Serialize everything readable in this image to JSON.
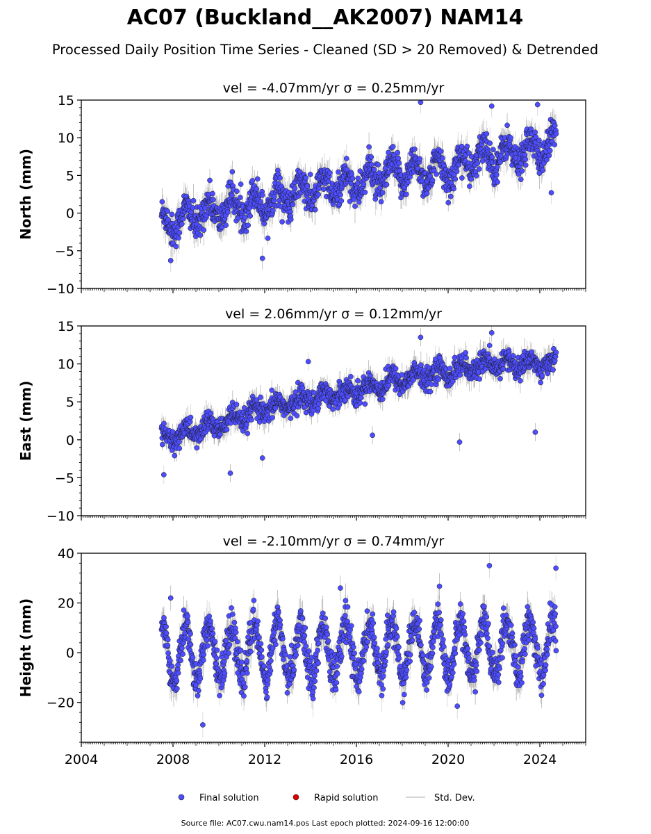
{
  "title": "AC07 (Buckland__AK2007) NAM14",
  "subtitle": "Processed Daily Position Time Series - Cleaned (SD > 20 Removed) & Detrended",
  "footer": "Source file: AC07.cwu.nam14.pos  Last epoch plotted: 2024-09-16 12:00:00",
  "colors": {
    "final": "#4d4dff",
    "rapid": "#e00000",
    "stddev": "#c8c8c8",
    "edge": "#1a1a1a"
  },
  "legend": [
    {
      "label": "Final solution",
      "marker": "circle",
      "color": "#4d4dff"
    },
    {
      "label": "Rapid solution",
      "marker": "circle",
      "color": "#e00000"
    },
    {
      "label": "Std. Dev.",
      "marker": "line",
      "color": "#c8c8c8"
    }
  ],
  "chart_data": [
    {
      "type": "scatter",
      "panel_title": "vel = -4.07mm/yr   σ = 0.25mm/yr",
      "ylabel": "North (mm)",
      "xlim": [
        2004,
        2026
      ],
      "ylim": [
        -10,
        15
      ],
      "yticks": [
        -10,
        -5,
        0,
        5,
        10,
        15
      ],
      "xticks": [
        2004,
        2008,
        2012,
        2016,
        2020,
        2024
      ],
      "show_xticklabels": false,
      "series": [
        {
          "name": "Final solution",
          "x_start": 2007.5,
          "x_end": 2024.71,
          "trend": [
            [
              2007.5,
              -1.5
            ],
            [
              2010,
              0.5
            ],
            [
              2012,
              1.5
            ],
            [
              2014,
              3
            ],
            [
              2016,
              4
            ],
            [
              2018,
              5.5
            ],
            [
              2020,
              5.5
            ],
            [
              2021.5,
              7.5
            ],
            [
              2023,
              8
            ],
            [
              2024.71,
              9
            ]
          ],
          "seasonal_amplitude": 1.5,
          "spread": 1.8,
          "sigma": 1.5,
          "outliers": [
            [
              2018.8,
              14.7
            ],
            [
              2021.9,
              14.2
            ],
            [
              2023.9,
              14.4
            ],
            [
              2011.9,
              -6
            ],
            [
              2007.9,
              -6.3
            ],
            [
              2024.5,
              2.7
            ]
          ]
        }
      ]
    },
    {
      "type": "scatter",
      "panel_title": "vel = 2.06mm/yr   σ = 0.12mm/yr",
      "ylabel": "East (mm)",
      "xlim": [
        2004,
        2026
      ],
      "ylim": [
        -10,
        15
      ],
      "yticks": [
        -10,
        -5,
        0,
        5,
        10,
        15
      ],
      "xticks": [
        2004,
        2008,
        2012,
        2016,
        2020,
        2024
      ],
      "show_xticklabels": false,
      "series": [
        {
          "name": "Final solution",
          "x_start": 2007.5,
          "x_end": 2024.71,
          "trend": [
            [
              2007.5,
              0
            ],
            [
              2010,
              2
            ],
            [
              2012,
              4
            ],
            [
              2014,
              5.5
            ],
            [
              2016,
              6.5
            ],
            [
              2018,
              8
            ],
            [
              2020,
              9
            ],
            [
              2022,
              10
            ],
            [
              2024.71,
              10
            ]
          ],
          "seasonal_amplitude": 0.8,
          "spread": 1.2,
          "sigma": 1.2,
          "outliers": [
            [
              2007.6,
              -4.6
            ],
            [
              2010.5,
              -4.4
            ],
            [
              2011.9,
              -2.4
            ],
            [
              2013.9,
              10.3
            ],
            [
              2018.8,
              13.5
            ],
            [
              2021.9,
              14.1
            ],
            [
              2020.5,
              -0.3
            ],
            [
              2023.8,
              1
            ],
            [
              2016.7,
              0.6
            ]
          ]
        }
      ]
    },
    {
      "type": "scatter",
      "panel_title": "vel = -2.10mm/yr   σ = 0.74mm/yr",
      "ylabel": "Height (mm)",
      "xlim": [
        2004,
        2026
      ],
      "ylim": [
        -36,
        40
      ],
      "yticks": [
        -20,
        0,
        20,
        40
      ],
      "xticks": [
        2004,
        2008,
        2012,
        2016,
        2020,
        2024
      ],
      "xticklabels": [
        "2004",
        "2008",
        "2012",
        "2016",
        "2020",
        "2024"
      ],
      "show_xticklabels": true,
      "series": [
        {
          "name": "Final solution",
          "x_start": 2007.5,
          "x_end": 2024.71,
          "trend": [
            [
              2007.5,
              0
            ],
            [
              2024.71,
              2
            ]
          ],
          "seasonal_amplitude": 11,
          "spread": 6,
          "sigma": 5,
          "outliers": [
            [
              2007.9,
              22
            ],
            [
              2009.3,
              -29
            ],
            [
              2020.4,
              -21.5
            ],
            [
              2021.8,
              35
            ],
            [
              2024.7,
              34
            ],
            [
              2015.3,
              26
            ]
          ]
        }
      ]
    }
  ]
}
